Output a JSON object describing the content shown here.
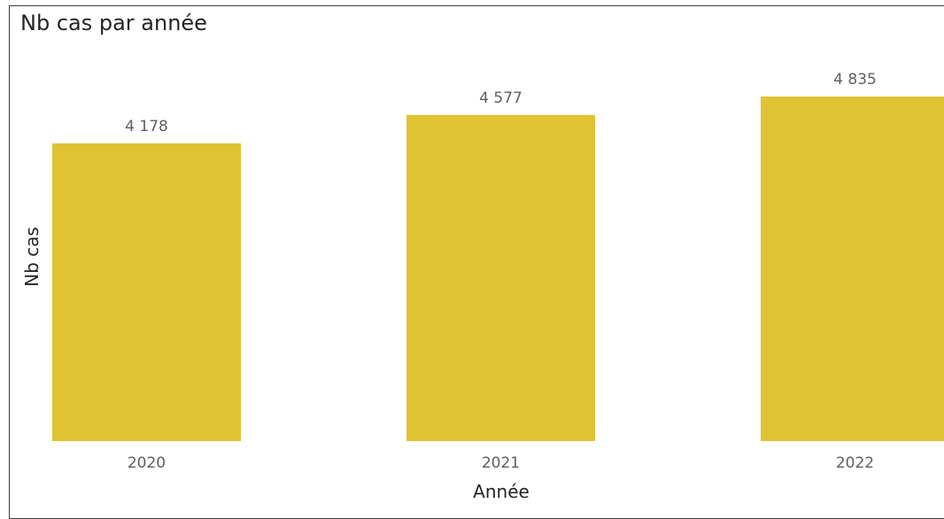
{
  "chart_data": {
    "type": "bar",
    "title": "Nb cas par année",
    "xlabel": "Année",
    "ylabel": "Nb cas",
    "categories": [
      "2020",
      "2021",
      "2022"
    ],
    "series": [
      {
        "values": [
          4178,
          4577,
          4835
        ],
        "display_labels": [
          "4 178",
          "4 577",
          "4 835"
        ],
        "color": "#E0C233"
      }
    ],
    "ylim": [
      0,
      4835
    ],
    "grid": false,
    "legend": "none"
  }
}
